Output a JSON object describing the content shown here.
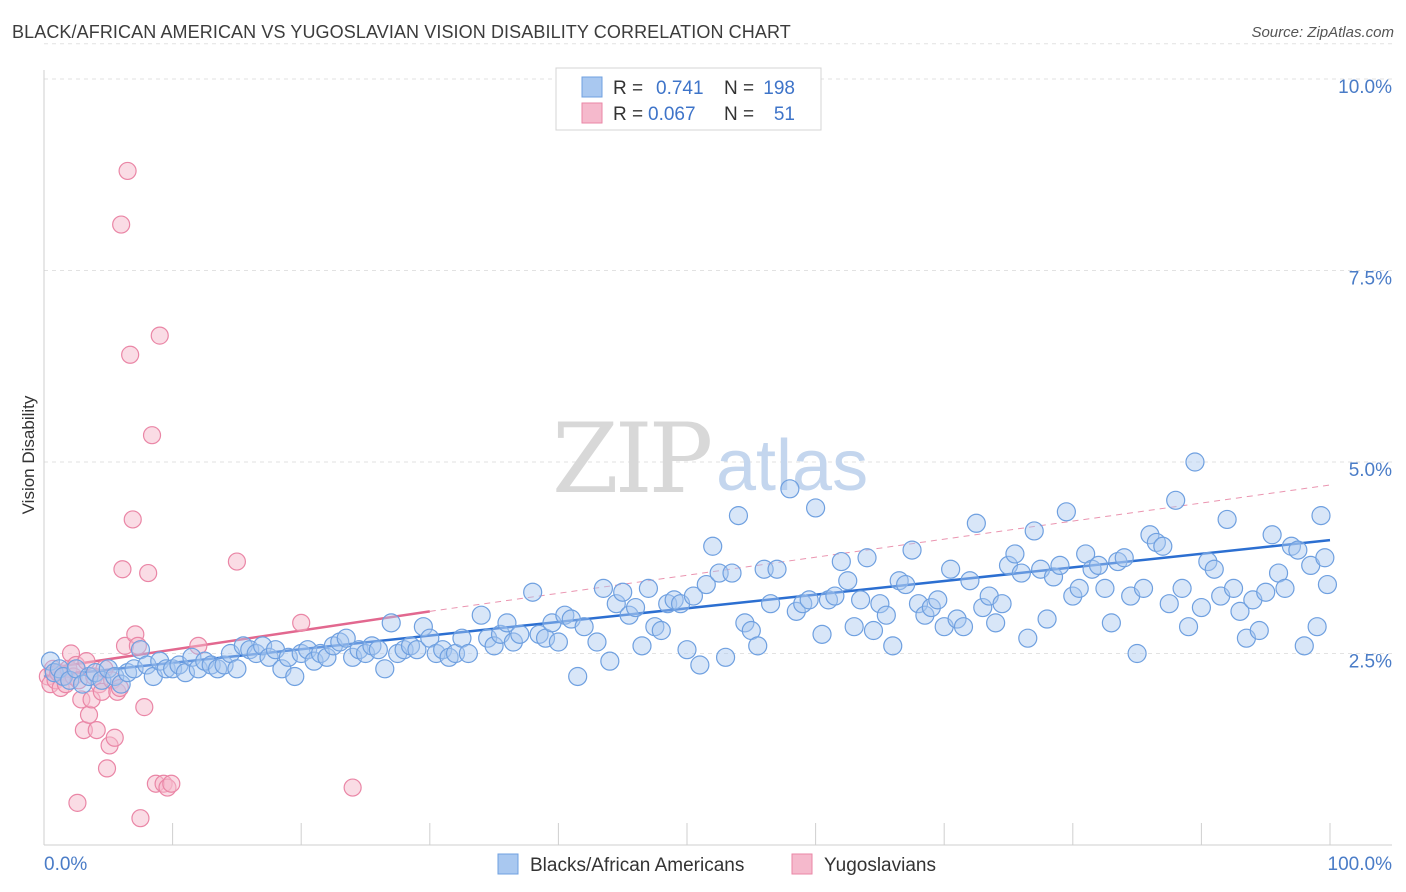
{
  "title": "BLACK/AFRICAN AMERICAN VS YUGOSLAVIAN VISION DISABILITY CORRELATION CHART",
  "source": "Source: ZipAtlas.com",
  "watermark": {
    "zip": "ZIP",
    "atlas": "atlas"
  },
  "colors": {
    "blue": "#6fa0e0",
    "blue_fill": "#a9c8f0",
    "pink": "#ea86a6",
    "pink_fill": "#f5b9cc",
    "blue_line": "#2c6fd1",
    "pink_line": "#e2688f"
  },
  "chart_data": {
    "type": "scatter",
    "xlabel": "",
    "ylabel": "Vision Disability",
    "xlim": [
      0,
      100
    ],
    "ylim": [
      0,
      10.5
    ],
    "x_tick_labels": {
      "min": "0.0%",
      "max": "100.0%"
    },
    "y_ticks": [
      {
        "value": 2.5,
        "label": "2.5%"
      },
      {
        "value": 5.0,
        "label": "5.0%"
      },
      {
        "value": 7.5,
        "label": "7.5%"
      },
      {
        "value": 10.0,
        "label": "10.0%"
      }
    ],
    "legend": {
      "rows": [
        {
          "r_label": "R =",
          "r_value": "0.741",
          "n_label": "N =",
          "n_value": "198"
        },
        {
          "r_label": "R =",
          "r_value": "0.067",
          "n_label": "N =",
          "n_value": "51"
        }
      ]
    },
    "series": [
      {
        "name": "Blacks/African Americans",
        "color": "#6fa0e0",
        "trend": {
          "x0": 0,
          "y0": 2.2,
          "x1": 100,
          "y1": 3.98
        },
        "points": [
          [
            0.5,
            2.4
          ],
          [
            0.8,
            2.25
          ],
          [
            1.2,
            2.3
          ],
          [
            1.5,
            2.2
          ],
          [
            2,
            2.15
          ],
          [
            2.5,
            2.3
          ],
          [
            3,
            2.1
          ],
          [
            3.5,
            2.2
          ],
          [
            4,
            2.25
          ],
          [
            4.5,
            2.15
          ],
          [
            5,
            2.3
          ],
          [
            5.5,
            2.2
          ],
          [
            6,
            2.1
          ],
          [
            6.5,
            2.25
          ],
          [
            7,
            2.3
          ],
          [
            7.5,
            2.55
          ],
          [
            8,
            2.35
          ],
          [
            8.5,
            2.2
          ],
          [
            9,
            2.4
          ],
          [
            9.5,
            2.3
          ],
          [
            10,
            2.3
          ],
          [
            10.5,
            2.35
          ],
          [
            11,
            2.25
          ],
          [
            11.5,
            2.45
          ],
          [
            12,
            2.3
          ],
          [
            12.5,
            2.4
          ],
          [
            13,
            2.35
          ],
          [
            13.5,
            2.3
          ],
          [
            14,
            2.35
          ],
          [
            14.5,
            2.5
          ],
          [
            15,
            2.3
          ],
          [
            15.5,
            2.6
          ],
          [
            16,
            2.55
          ],
          [
            16.5,
            2.5
          ],
          [
            17,
            2.6
          ],
          [
            17.5,
            2.45
          ],
          [
            18,
            2.55
          ],
          [
            18.5,
            2.3
          ],
          [
            19,
            2.45
          ],
          [
            19.5,
            2.2
          ],
          [
            20,
            2.5
          ],
          [
            20.5,
            2.55
          ],
          [
            21,
            2.4
          ],
          [
            21.5,
            2.5
          ],
          [
            22,
            2.45
          ],
          [
            22.5,
            2.6
          ],
          [
            23,
            2.65
          ],
          [
            23.5,
            2.7
          ],
          [
            24,
            2.45
          ],
          [
            24.5,
            2.55
          ],
          [
            25,
            2.5
          ],
          [
            25.5,
            2.6
          ],
          [
            26,
            2.55
          ],
          [
            26.5,
            2.3
          ],
          [
            27,
            2.9
          ],
          [
            27.5,
            2.5
          ],
          [
            28,
            2.55
          ],
          [
            28.5,
            2.6
          ],
          [
            29,
            2.55
          ],
          [
            29.5,
            2.85
          ],
          [
            30,
            2.7
          ],
          [
            30.5,
            2.5
          ],
          [
            31,
            2.55
          ],
          [
            31.5,
            2.45
          ],
          [
            32,
            2.5
          ],
          [
            32.5,
            2.7
          ],
          [
            33,
            2.5
          ],
          [
            34,
            3.0
          ],
          [
            34.5,
            2.7
          ],
          [
            35,
            2.6
          ],
          [
            35.5,
            2.75
          ],
          [
            36,
            2.9
          ],
          [
            36.5,
            2.65
          ],
          [
            37,
            2.75
          ],
          [
            38,
            3.3
          ],
          [
            38.5,
            2.75
          ],
          [
            39,
            2.7
          ],
          [
            39.5,
            2.9
          ],
          [
            40,
            2.65
          ],
          [
            40.5,
            3.0
          ],
          [
            41,
            2.95
          ],
          [
            41.5,
            2.2
          ],
          [
            42,
            2.85
          ],
          [
            43,
            2.65
          ],
          [
            43.5,
            3.35
          ],
          [
            44,
            2.4
          ],
          [
            44.5,
            3.15
          ],
          [
            45,
            3.3
          ],
          [
            45.5,
            3.0
          ],
          [
            46,
            3.1
          ],
          [
            46.5,
            2.6
          ],
          [
            47,
            3.35
          ],
          [
            47.5,
            2.85
          ],
          [
            48,
            2.8
          ],
          [
            48.5,
            3.15
          ],
          [
            49,
            3.2
          ],
          [
            49.5,
            3.15
          ],
          [
            50,
            2.55
          ],
          [
            50.5,
            3.25
          ],
          [
            51,
            2.35
          ],
          [
            51.5,
            3.4
          ],
          [
            52,
            3.9
          ],
          [
            52.5,
            3.55
          ],
          [
            53,
            2.45
          ],
          [
            53.5,
            3.55
          ],
          [
            54,
            4.3
          ],
          [
            54.5,
            2.9
          ],
          [
            55,
            2.8
          ],
          [
            55.5,
            2.6
          ],
          [
            56,
            3.6
          ],
          [
            56.5,
            3.15
          ],
          [
            57,
            3.6
          ],
          [
            58,
            4.65
          ],
          [
            58.5,
            3.05
          ],
          [
            59,
            3.15
          ],
          [
            59.5,
            3.2
          ],
          [
            60,
            4.4
          ],
          [
            60.5,
            2.75
          ],
          [
            61,
            3.2
          ],
          [
            61.5,
            3.25
          ],
          [
            62,
            3.7
          ],
          [
            62.5,
            3.45
          ],
          [
            63,
            2.85
          ],
          [
            63.5,
            3.2
          ],
          [
            64,
            3.75
          ],
          [
            64.5,
            2.8
          ],
          [
            65,
            3.15
          ],
          [
            65.5,
            3.0
          ],
          [
            66,
            2.6
          ],
          [
            66.5,
            3.45
          ],
          [
            67,
            3.4
          ],
          [
            67.5,
            3.85
          ],
          [
            68,
            3.15
          ],
          [
            68.5,
            3.0
          ],
          [
            69,
            3.1
          ],
          [
            69.5,
            3.2
          ],
          [
            70,
            2.85
          ],
          [
            70.5,
            3.6
          ],
          [
            71,
            2.95
          ],
          [
            71.5,
            2.85
          ],
          [
            72,
            3.45
          ],
          [
            72.5,
            4.2
          ],
          [
            73,
            3.1
          ],
          [
            73.5,
            3.25
          ],
          [
            74,
            2.9
          ],
          [
            74.5,
            3.15
          ],
          [
            75,
            3.65
          ],
          [
            75.5,
            3.8
          ],
          [
            76,
            3.55
          ],
          [
            76.5,
            2.7
          ],
          [
            77,
            4.1
          ],
          [
            77.5,
            3.6
          ],
          [
            78,
            2.95
          ],
          [
            78.5,
            3.5
          ],
          [
            79,
            3.65
          ],
          [
            79.5,
            4.35
          ],
          [
            80,
            3.25
          ],
          [
            80.5,
            3.35
          ],
          [
            81,
            3.8
          ],
          [
            81.5,
            3.6
          ],
          [
            82,
            3.65
          ],
          [
            82.5,
            3.35
          ],
          [
            83,
            2.9
          ],
          [
            83.5,
            3.7
          ],
          [
            84,
            3.75
          ],
          [
            84.5,
            3.25
          ],
          [
            85,
            2.5
          ],
          [
            85.5,
            3.35
          ],
          [
            86,
            4.05
          ],
          [
            86.5,
            3.95
          ],
          [
            87,
            3.9
          ],
          [
            87.5,
            3.15
          ],
          [
            88,
            4.5
          ],
          [
            88.5,
            3.35
          ],
          [
            89,
            2.85
          ],
          [
            89.5,
            5.0
          ],
          [
            90,
            3.1
          ],
          [
            90.5,
            3.7
          ],
          [
            91,
            3.6
          ],
          [
            91.5,
            3.25
          ],
          [
            92,
            4.25
          ],
          [
            92.5,
            3.35
          ],
          [
            93,
            3.05
          ],
          [
            93.5,
            2.7
          ],
          [
            94,
            3.2
          ],
          [
            94.5,
            2.8
          ],
          [
            95,
            3.3
          ],
          [
            95.5,
            4.05
          ],
          [
            96,
            3.55
          ],
          [
            96.5,
            3.35
          ],
          [
            97,
            3.9
          ],
          [
            97.5,
            3.85
          ],
          [
            98,
            2.6
          ],
          [
            98.5,
            3.65
          ],
          [
            99,
            2.85
          ],
          [
            99.3,
            4.3
          ],
          [
            99.6,
            3.75
          ],
          [
            99.8,
            3.4
          ]
        ]
      },
      {
        "name": "Yugoslavians",
        "color": "#ea86a6",
        "trend": {
          "x0": 0,
          "y0": 2.3,
          "x1": 30,
          "y1": 3.05,
          "dash_x1": 100,
          "dash_y1": 4.7
        },
        "points": [
          [
            0.3,
            2.2
          ],
          [
            0.5,
            2.1
          ],
          [
            0.7,
            2.3
          ],
          [
            0.9,
            2.15
          ],
          [
            1.1,
            2.25
          ],
          [
            1.3,
            2.05
          ],
          [
            1.5,
            2.2
          ],
          [
            1.7,
            2.1
          ],
          [
            1.9,
            2.3
          ],
          [
            2.1,
            2.5
          ],
          [
            2.3,
            2.2
          ],
          [
            2.5,
            2.35
          ],
          [
            2.7,
            2.15
          ],
          [
            2.9,
            1.9
          ],
          [
            3.1,
            1.5
          ],
          [
            3.3,
            2.4
          ],
          [
            3.5,
            1.7
          ],
          [
            3.7,
            1.9
          ],
          [
            3.9,
            2.2
          ],
          [
            4.1,
            1.5
          ],
          [
            4.3,
            2.1
          ],
          [
            4.5,
            2.0
          ],
          [
            4.7,
            2.3
          ],
          [
            4.9,
            1.0
          ],
          [
            5.1,
            1.3
          ],
          [
            5.3,
            2.15
          ],
          [
            5.5,
            1.4
          ],
          [
            5.7,
            2.0
          ],
          [
            5.9,
            2.05
          ],
          [
            6.1,
            3.6
          ],
          [
            6.3,
            2.6
          ],
          [
            6.5,
            8.8
          ],
          [
            6.7,
            6.4
          ],
          [
            6.9,
            4.25
          ],
          [
            7.1,
            2.75
          ],
          [
            7.3,
            2.6
          ],
          [
            7.5,
            0.35
          ],
          [
            7.8,
            1.8
          ],
          [
            8.1,
            3.55
          ],
          [
            8.4,
            5.35
          ],
          [
            8.7,
            0.8
          ],
          [
            9.0,
            6.65
          ],
          [
            9.3,
            0.8
          ],
          [
            9.6,
            0.75
          ],
          [
            9.9,
            0.8
          ],
          [
            12,
            2.6
          ],
          [
            15,
            3.7
          ],
          [
            20,
            2.9
          ],
          [
            24,
            0.75
          ],
          [
            6.0,
            8.1
          ],
          [
            2.6,
            0.55
          ]
        ]
      }
    ]
  }
}
